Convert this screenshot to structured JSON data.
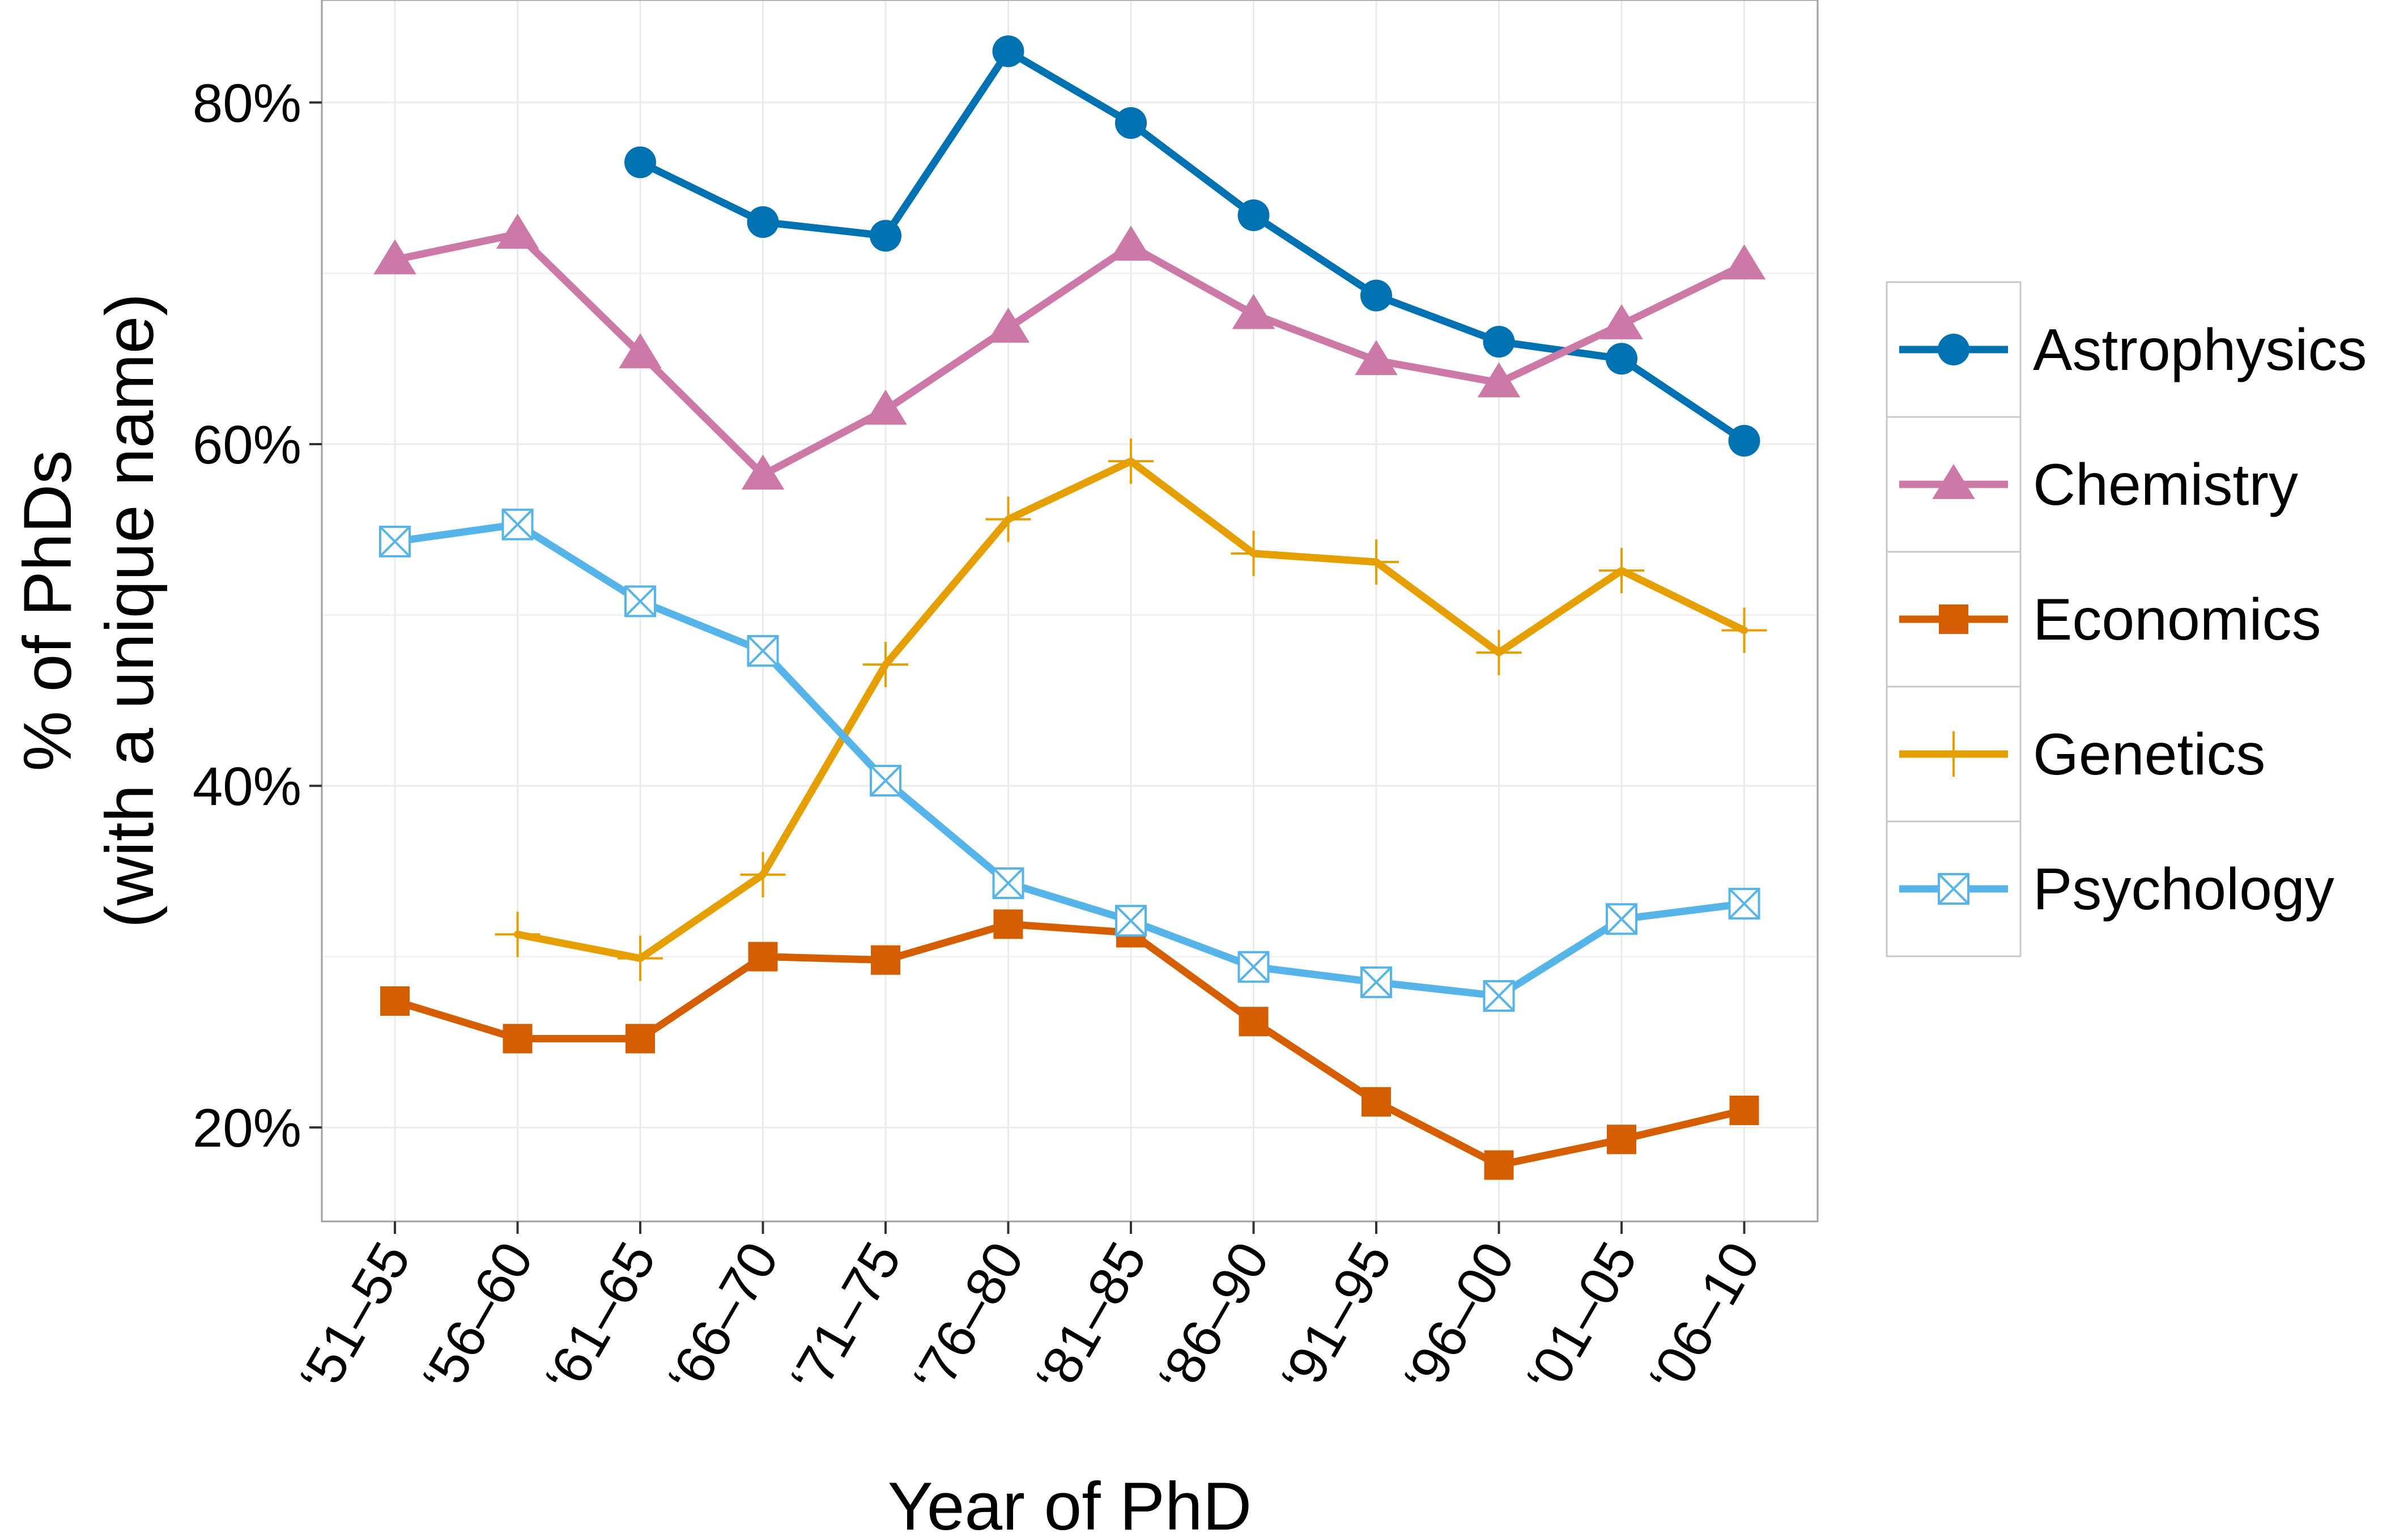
{
  "chart_data": {
    "type": "line",
    "categories": [
      "‘51–55",
      "‘56–60",
      "‘61–65",
      "‘66–70",
      "‘71–75",
      "‘76–80",
      "‘81–85",
      "‘86–90",
      "‘91–95",
      "‘96–00",
      "‘01–05",
      "‘06–10"
    ],
    "xlabel": "Year of PhD",
    "ylabel_lines": [
      "% of PhDs",
      "(with a unique name)"
    ],
    "ylim": [
      14.5,
      86
    ],
    "yticks": [
      20,
      40,
      60,
      80
    ],
    "ytick_labels": [
      "20%",
      "40%",
      "60%",
      "80%"
    ],
    "grid": true,
    "legend_position": "right",
    "series": [
      {
        "name": "Astrophysics",
        "color": "#0072B2",
        "marker": "circle",
        "values": [
          null,
          null,
          76.5,
          73.0,
          72.2,
          83.0,
          78.8,
          73.4,
          68.7,
          66.0,
          65.0,
          60.2
        ]
      },
      {
        "name": "Chemistry",
        "color": "#CC79A7",
        "marker": "triangle",
        "values": [
          70.8,
          72.3,
          65.3,
          58.2,
          62.0,
          66.8,
          71.6,
          67.6,
          64.9,
          63.6,
          67.0,
          70.5
        ]
      },
      {
        "name": "Economics",
        "color": "#D55E00",
        "marker": "square",
        "values": [
          27.4,
          25.2,
          25.2,
          30.0,
          29.8,
          31.9,
          31.4,
          26.2,
          21.5,
          17.8,
          19.3,
          21.0
        ]
      },
      {
        "name": "Genetics",
        "color": "#E69F00",
        "marker": "plus",
        "values": [
          null,
          31.3,
          29.9,
          34.8,
          47.1,
          55.6,
          59.0,
          53.6,
          53.1,
          47.8,
          52.6,
          49.1
        ]
      },
      {
        "name": "Psychology",
        "color": "#56B4E9",
        "marker": "boxx",
        "values": [
          54.3,
          55.3,
          50.8,
          47.9,
          40.3,
          34.3,
          32.1,
          29.4,
          28.5,
          27.7,
          32.2,
          33.1
        ]
      }
    ]
  }
}
